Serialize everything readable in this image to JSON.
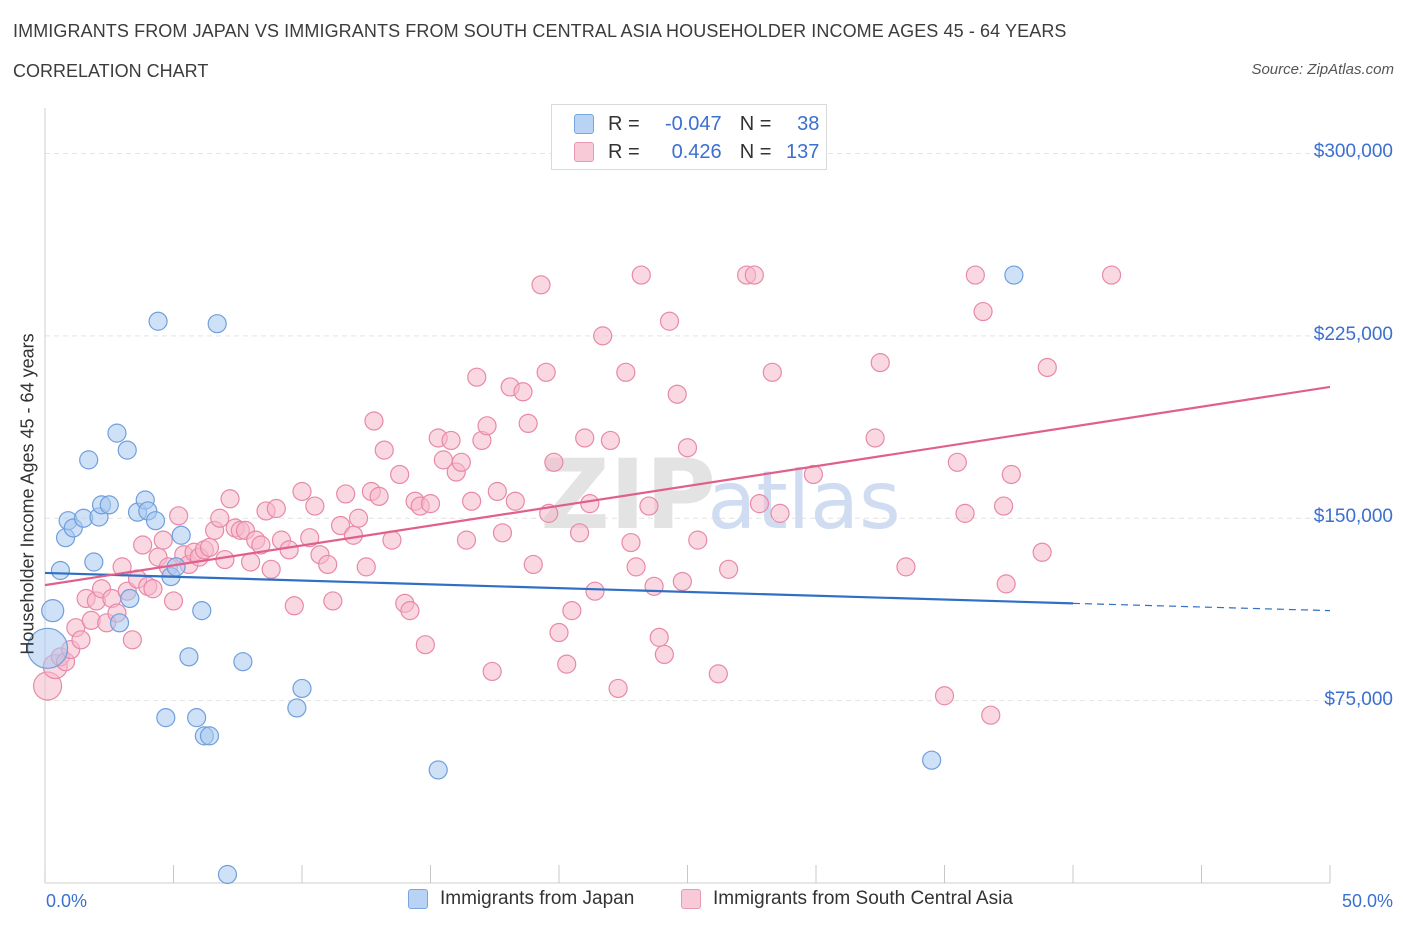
{
  "header": {
    "title": "IMMIGRANTS FROM JAPAN VS IMMIGRANTS FROM SOUTH CENTRAL ASIA HOUSEHOLDER INCOME AGES 45 - 64 YEARS",
    "subtitle": "CORRELATION CHART",
    "source": "Source: ZipAtlas.com"
  },
  "watermark": {
    "zip": "ZIP",
    "atlas": "atlas"
  },
  "legend": {
    "r_label": "R =",
    "n_label": "N =",
    "rows": [
      {
        "r": "-0.047",
        "n": "38"
      },
      {
        "r": "0.426",
        "n": "137"
      }
    ]
  },
  "colors": {
    "japan_fill": "#a8c8f0",
    "japan_stroke": "#6f9fdc",
    "japan_line": "#2f6fc4",
    "sca_fill": "#f5b8cb",
    "sca_stroke": "#e889a8",
    "sca_line": "#e0608b",
    "axis_label": "#3b6fd0"
  },
  "chart_data": {
    "type": "scatter",
    "title": "IMMIGRANTS FROM JAPAN VS IMMIGRANTS FROM SOUTH CENTRAL ASIA HOUSEHOLDER INCOME AGES 45 - 64 YEARS",
    "xlabel": "",
    "ylabel": "Householder Income Ages 45 - 64 years",
    "xlim": [
      0,
      50
    ],
    "ylim": [
      0,
      315000
    ],
    "x_tick_labels": [
      "0.0%",
      "50.0%"
    ],
    "y_ticks": [
      {
        "value": 75000,
        "label": "$75,000"
      },
      {
        "value": 150000,
        "label": "$150,000"
      },
      {
        "value": 225000,
        "label": "$225,000"
      },
      {
        "value": 300000,
        "label": "$300,000"
      }
    ],
    "grid": true,
    "legend_position": "top-center",
    "series": [
      {
        "name": "Immigrants from Japan",
        "color": "#6f9fdc",
        "R": -0.047,
        "N": 38,
        "trend": {
          "x0": 0,
          "y0": 127500,
          "x1": 40,
          "y1": 115000,
          "dashed_to_x": 50,
          "dashed_to_y": 112000
        },
        "points": [
          [
            0.1,
            96500,
            20
          ],
          [
            0.3,
            112000,
            11
          ],
          [
            0.6,
            128500,
            9
          ],
          [
            0.8,
            142000,
            9
          ],
          [
            0.9,
            149000,
            9
          ],
          [
            1.1,
            146000,
            9
          ],
          [
            1.5,
            150000,
            9
          ],
          [
            1.7,
            174000,
            9
          ],
          [
            1.9,
            132000,
            9
          ],
          [
            2.1,
            150500,
            9
          ],
          [
            2.2,
            155500,
            9
          ],
          [
            2.5,
            155500,
            9
          ],
          [
            2.8,
            185000,
            9
          ],
          [
            2.9,
            107000,
            9
          ],
          [
            3.2,
            178000,
            9
          ],
          [
            3.3,
            117000,
            9
          ],
          [
            3.6,
            152500,
            9
          ],
          [
            3.9,
            157500,
            9
          ],
          [
            4.0,
            153000,
            9
          ],
          [
            4.3,
            149000,
            9
          ],
          [
            4.4,
            231000,
            9
          ],
          [
            4.7,
            68000,
            9
          ],
          [
            4.9,
            126000,
            9
          ],
          [
            5.1,
            130000,
            9
          ],
          [
            5.3,
            143000,
            9
          ],
          [
            5.6,
            93000,
            9
          ],
          [
            5.9,
            68000,
            9
          ],
          [
            6.1,
            112000,
            9
          ],
          [
            6.2,
            60500,
            9
          ],
          [
            6.4,
            60500,
            9
          ],
          [
            6.7,
            230000,
            9
          ],
          [
            7.1,
            3500,
            9
          ],
          [
            7.7,
            91000,
            9
          ],
          [
            9.8,
            72000,
            9
          ],
          [
            10.0,
            80000,
            9
          ],
          [
            15.3,
            46500,
            9
          ],
          [
            34.5,
            50500,
            9
          ],
          [
            37.7,
            250000,
            9
          ]
        ]
      },
      {
        "name": "Immigrants from South Central Asia",
        "color": "#e889a8",
        "R": 0.426,
        "N": 137,
        "trend": {
          "x0": 0,
          "y0": 122500,
          "x1": 50,
          "y1": 204000
        },
        "points": [
          [
            0.1,
            81000,
            14
          ],
          [
            0.4,
            89000,
            12
          ],
          [
            0.6,
            93000,
            9
          ],
          [
            0.8,
            91000,
            9
          ],
          [
            1.0,
            96000,
            9
          ],
          [
            1.2,
            105000,
            9
          ],
          [
            1.4,
            100000,
            9
          ],
          [
            1.6,
            117000,
            9
          ],
          [
            1.8,
            108000,
            9
          ],
          [
            2.0,
            116000,
            9
          ],
          [
            2.2,
            121000,
            9
          ],
          [
            2.4,
            107000,
            9
          ],
          [
            2.6,
            117000,
            9
          ],
          [
            2.8,
            111000,
            9
          ],
          [
            3.0,
            130000,
            9
          ],
          [
            3.2,
            120000,
            9
          ],
          [
            3.4,
            100000,
            9
          ],
          [
            3.6,
            125000,
            9
          ],
          [
            3.8,
            139000,
            9
          ],
          [
            4.0,
            122000,
            9
          ],
          [
            4.2,
            121000,
            9
          ],
          [
            4.4,
            134000,
            9
          ],
          [
            4.6,
            141000,
            9
          ],
          [
            4.8,
            130000,
            9
          ],
          [
            5.0,
            116000,
            9
          ],
          [
            5.2,
            151000,
            9
          ],
          [
            5.4,
            135000,
            9
          ],
          [
            5.6,
            131000,
            9
          ],
          [
            5.8,
            136000,
            9
          ],
          [
            6.0,
            134000,
            9
          ],
          [
            6.2,
            137000,
            9
          ],
          [
            6.4,
            138000,
            9
          ],
          [
            6.6,
            145000,
            9
          ],
          [
            6.8,
            150000,
            9
          ],
          [
            7.0,
            133000,
            9
          ],
          [
            7.2,
            158000,
            9
          ],
          [
            7.4,
            146000,
            9
          ],
          [
            7.6,
            145000,
            9
          ],
          [
            7.8,
            145000,
            9
          ],
          [
            8.0,
            132000,
            9
          ],
          [
            8.2,
            141000,
            9
          ],
          [
            8.4,
            139000,
            9
          ],
          [
            8.6,
            153000,
            9
          ],
          [
            8.8,
            129000,
            9
          ],
          [
            9.0,
            154000,
            9
          ],
          [
            9.2,
            141000,
            9
          ],
          [
            9.5,
            137000,
            9
          ],
          [
            9.7,
            114000,
            9
          ],
          [
            10.0,
            161000,
            9
          ],
          [
            10.3,
            142000,
            9
          ],
          [
            10.5,
            155000,
            9
          ],
          [
            10.7,
            135000,
            9
          ],
          [
            11.0,
            131000,
            9
          ],
          [
            11.2,
            116000,
            9
          ],
          [
            11.5,
            147000,
            9
          ],
          [
            11.7,
            160000,
            9
          ],
          [
            12.0,
            143000,
            9
          ],
          [
            12.2,
            150000,
            9
          ],
          [
            12.5,
            130000,
            9
          ],
          [
            12.7,
            161000,
            9
          ],
          [
            12.8,
            190000,
            9
          ],
          [
            13.0,
            159000,
            9
          ],
          [
            13.2,
            178000,
            9
          ],
          [
            13.5,
            141000,
            9
          ],
          [
            13.8,
            168000,
            9
          ],
          [
            14.0,
            115000,
            9
          ],
          [
            14.2,
            112000,
            9
          ],
          [
            14.4,
            157000,
            9
          ],
          [
            14.6,
            155000,
            9
          ],
          [
            14.8,
            98000,
            9
          ],
          [
            15.0,
            156000,
            9
          ],
          [
            15.3,
            183000,
            9
          ],
          [
            15.5,
            174000,
            9
          ],
          [
            15.8,
            182000,
            9
          ],
          [
            16.0,
            169000,
            9
          ],
          [
            16.2,
            173000,
            9
          ],
          [
            16.4,
            141000,
            9
          ],
          [
            16.6,
            157000,
            9
          ],
          [
            16.8,
            208000,
            9
          ],
          [
            17.0,
            182000,
            9
          ],
          [
            17.2,
            188000,
            9
          ],
          [
            17.4,
            87000,
            9
          ],
          [
            17.6,
            161000,
            9
          ],
          [
            17.8,
            144000,
            9
          ],
          [
            18.1,
            204000,
            9
          ],
          [
            18.3,
            157000,
            9
          ],
          [
            18.6,
            202000,
            9
          ],
          [
            18.8,
            189000,
            9
          ],
          [
            19.0,
            131000,
            9
          ],
          [
            19.3,
            246000,
            9
          ],
          [
            19.5,
            210000,
            9
          ],
          [
            19.6,
            152000,
            9
          ],
          [
            19.8,
            173000,
            9
          ],
          [
            20.0,
            103000,
            9
          ],
          [
            20.3,
            90000,
            9
          ],
          [
            20.5,
            112000,
            9
          ],
          [
            20.8,
            144000,
            9
          ],
          [
            21.0,
            183000,
            9
          ],
          [
            21.2,
            156000,
            9
          ],
          [
            21.4,
            120000,
            9
          ],
          [
            21.7,
            225000,
            9
          ],
          [
            22.0,
            182000,
            9
          ],
          [
            22.3,
            80000,
            9
          ],
          [
            22.6,
            210000,
            9
          ],
          [
            22.8,
            140000,
            9
          ],
          [
            23.0,
            130000,
            9
          ],
          [
            23.2,
            250000,
            9
          ],
          [
            23.5,
            155000,
            9
          ],
          [
            23.7,
            122000,
            9
          ],
          [
            23.9,
            101000,
            9
          ],
          [
            24.1,
            94000,
            9
          ],
          [
            24.3,
            231000,
            9
          ],
          [
            24.6,
            201000,
            9
          ],
          [
            24.8,
            124000,
            9
          ],
          [
            25.0,
            179000,
            9
          ],
          [
            25.4,
            141000,
            9
          ],
          [
            26.2,
            86000,
            9
          ],
          [
            26.6,
            129000,
            9
          ],
          [
            27.3,
            250000,
            9
          ],
          [
            27.6,
            250000,
            9
          ],
          [
            27.8,
            156000,
            9
          ],
          [
            28.3,
            210000,
            9
          ],
          [
            28.6,
            152000,
            9
          ],
          [
            29.9,
            168000,
            9
          ],
          [
            32.5,
            214000,
            9
          ],
          [
            32.3,
            183000,
            9
          ],
          [
            33.5,
            130000,
            9
          ],
          [
            35.0,
            77000,
            9
          ],
          [
            35.5,
            173000,
            9
          ],
          [
            35.8,
            152000,
            9
          ],
          [
            36.2,
            250000,
            9
          ],
          [
            36.5,
            235000,
            9
          ],
          [
            36.8,
            69000,
            9
          ],
          [
            37.3,
            155000,
            9
          ],
          [
            37.4,
            123000,
            9
          ],
          [
            37.6,
            168000,
            9
          ],
          [
            39.0,
            212000,
            9
          ],
          [
            38.8,
            136000,
            9
          ],
          [
            41.5,
            250000,
            9
          ]
        ]
      }
    ]
  },
  "bottom_legend": [
    {
      "label": "Immigrants from Japan"
    },
    {
      "label": "Immigrants from South Central Asia"
    }
  ]
}
